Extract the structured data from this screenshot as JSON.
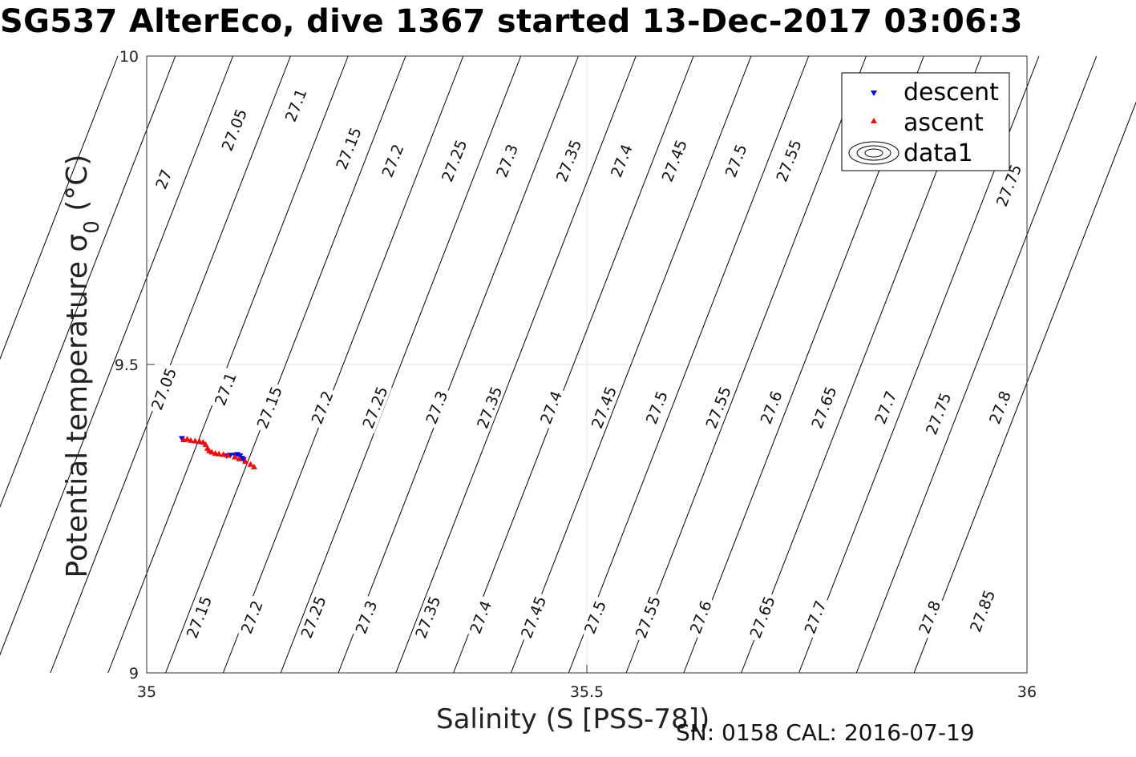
{
  "title": "SG537 AlterEco, dive 1367 started 13-Dec-2017 03:06:3",
  "footer": "SN: 0158  CAL: 2016-07-19",
  "colors": {
    "descent": "#0000ff",
    "ascent": "#ff0000",
    "contour": "#000000",
    "grid": "#e6e6e6"
  },
  "chart_data": {
    "type": "scatter",
    "xlabel": "Salinity (S [PSS-78])",
    "ylabel_text": "Potential temperature σ",
    "ylabel_sub": "0",
    "ylabel_unit": " (°C)",
    "xlim": [
      35,
      36
    ],
    "ylim": [
      9,
      10
    ],
    "xticks": [
      35,
      35.5,
      36
    ],
    "xtick_labels": [
      "35",
      "35.5",
      "36"
    ],
    "yticks": [
      9,
      9.5,
      10
    ],
    "ytick_labels": [
      "9",
      "9.5",
      "10"
    ],
    "grid": true,
    "legend_position": "top-right",
    "legend": [
      {
        "name": "descent",
        "marker": "triangle-down",
        "color": "#0000ff"
      },
      {
        "name": "ascent",
        "marker": "triangle-up",
        "color": "#ff0000"
      },
      {
        "name": "data1",
        "marker": "contour"
      }
    ],
    "contours": {
      "levels": [
        26.95,
        27.0,
        27.05,
        27.1,
        27.15,
        27.2,
        27.25,
        27.3,
        27.35,
        27.4,
        27.45,
        27.5,
        27.55,
        27.6,
        27.65,
        27.7,
        27.75,
        27.8,
        27.85
      ],
      "labels": [
        {
          "text": "27",
          "s": 35.02,
          "t": 9.8
        },
        {
          "text": "27.05",
          "s": 35.1,
          "t": 9.88
        },
        {
          "text": "27.1",
          "s": 35.17,
          "t": 9.92
        },
        {
          "text": "27.15",
          "s": 35.23,
          "t": 9.85
        },
        {
          "text": "27.2",
          "s": 35.28,
          "t": 9.83
        },
        {
          "text": "27.25",
          "s": 35.35,
          "t": 9.83
        },
        {
          "text": "27.3",
          "s": 35.41,
          "t": 9.83
        },
        {
          "text": "27.35",
          "s": 35.48,
          "t": 9.83
        },
        {
          "text": "27.4",
          "s": 35.54,
          "t": 9.83
        },
        {
          "text": "27.45",
          "s": 35.6,
          "t": 9.83
        },
        {
          "text": "27.5",
          "s": 35.67,
          "t": 9.83
        },
        {
          "text": "27.55",
          "s": 35.73,
          "t": 9.83
        },
        {
          "text": "27.75",
          "s": 35.98,
          "t": 9.79
        },
        {
          "text": "27.05",
          "s": 35.02,
          "t": 9.46
        },
        {
          "text": "27.1",
          "s": 35.09,
          "t": 9.46
        },
        {
          "text": "27.15",
          "s": 35.14,
          "t": 9.43
        },
        {
          "text": "27.2",
          "s": 35.2,
          "t": 9.43
        },
        {
          "text": "27.25",
          "s": 35.26,
          "t": 9.43
        },
        {
          "text": "27.3",
          "s": 35.33,
          "t": 9.43
        },
        {
          "text": "27.35",
          "s": 35.39,
          "t": 9.43
        },
        {
          "text": "27.4",
          "s": 35.46,
          "t": 9.43
        },
        {
          "text": "27.45",
          "s": 35.52,
          "t": 9.43
        },
        {
          "text": "27.5",
          "s": 35.58,
          "t": 9.43
        },
        {
          "text": "27.55",
          "s": 35.65,
          "t": 9.43
        },
        {
          "text": "27.6",
          "s": 35.71,
          "t": 9.43
        },
        {
          "text": "27.65",
          "s": 35.77,
          "t": 9.43
        },
        {
          "text": "27.7",
          "s": 35.84,
          "t": 9.43
        },
        {
          "text": "27.75",
          "s": 35.9,
          "t": 9.42
        },
        {
          "text": "27.8",
          "s": 35.97,
          "t": 9.43
        },
        {
          "text": "27.15",
          "s": 35.06,
          "t": 9.09
        },
        {
          "text": "27.2",
          "s": 35.12,
          "t": 9.09
        },
        {
          "text": "27.25",
          "s": 35.19,
          "t": 9.09
        },
        {
          "text": "27.3",
          "s": 35.25,
          "t": 9.09
        },
        {
          "text": "27.35",
          "s": 35.32,
          "t": 9.09
        },
        {
          "text": "27.4",
          "s": 35.38,
          "t": 9.09
        },
        {
          "text": "27.45",
          "s": 35.44,
          "t": 9.09
        },
        {
          "text": "27.5",
          "s": 35.51,
          "t": 9.09
        },
        {
          "text": "27.55",
          "s": 35.57,
          "t": 9.09
        },
        {
          "text": "27.6",
          "s": 35.63,
          "t": 9.09
        },
        {
          "text": "27.65",
          "s": 35.7,
          "t": 9.09
        },
        {
          "text": "27.7",
          "s": 35.76,
          "t": 9.09
        },
        {
          "text": "27.8",
          "s": 35.89,
          "t": 9.09
        },
        {
          "text": "27.85",
          "s": 35.95,
          "t": 9.1
        }
      ]
    },
    "series": [
      {
        "name": "descent",
        "marker": "triangle-down",
        "color": "#0000ff",
        "x": [
          35.04,
          35.091,
          35.095,
          35.1,
          35.103,
          35.106,
          35.108,
          35.11
        ],
        "y": [
          9.38,
          9.352,
          9.353,
          9.353,
          9.354,
          9.352,
          9.348,
          9.346
        ]
      },
      {
        "name": "ascent",
        "marker": "triangle-up",
        "color": "#ff0000",
        "x": [
          35.042,
          35.046,
          35.05,
          35.055,
          35.06,
          35.064,
          35.067,
          35.069,
          35.071,
          35.074,
          35.078,
          35.082,
          35.087,
          35.092,
          35.1,
          35.105,
          35.112,
          35.118,
          35.122
        ],
        "y": [
          9.378,
          9.379,
          9.377,
          9.376,
          9.375,
          9.374,
          9.37,
          9.364,
          9.36,
          9.358,
          9.356,
          9.355,
          9.354,
          9.353,
          9.35,
          9.347,
          9.343,
          9.338,
          9.334
        ]
      }
    ]
  }
}
